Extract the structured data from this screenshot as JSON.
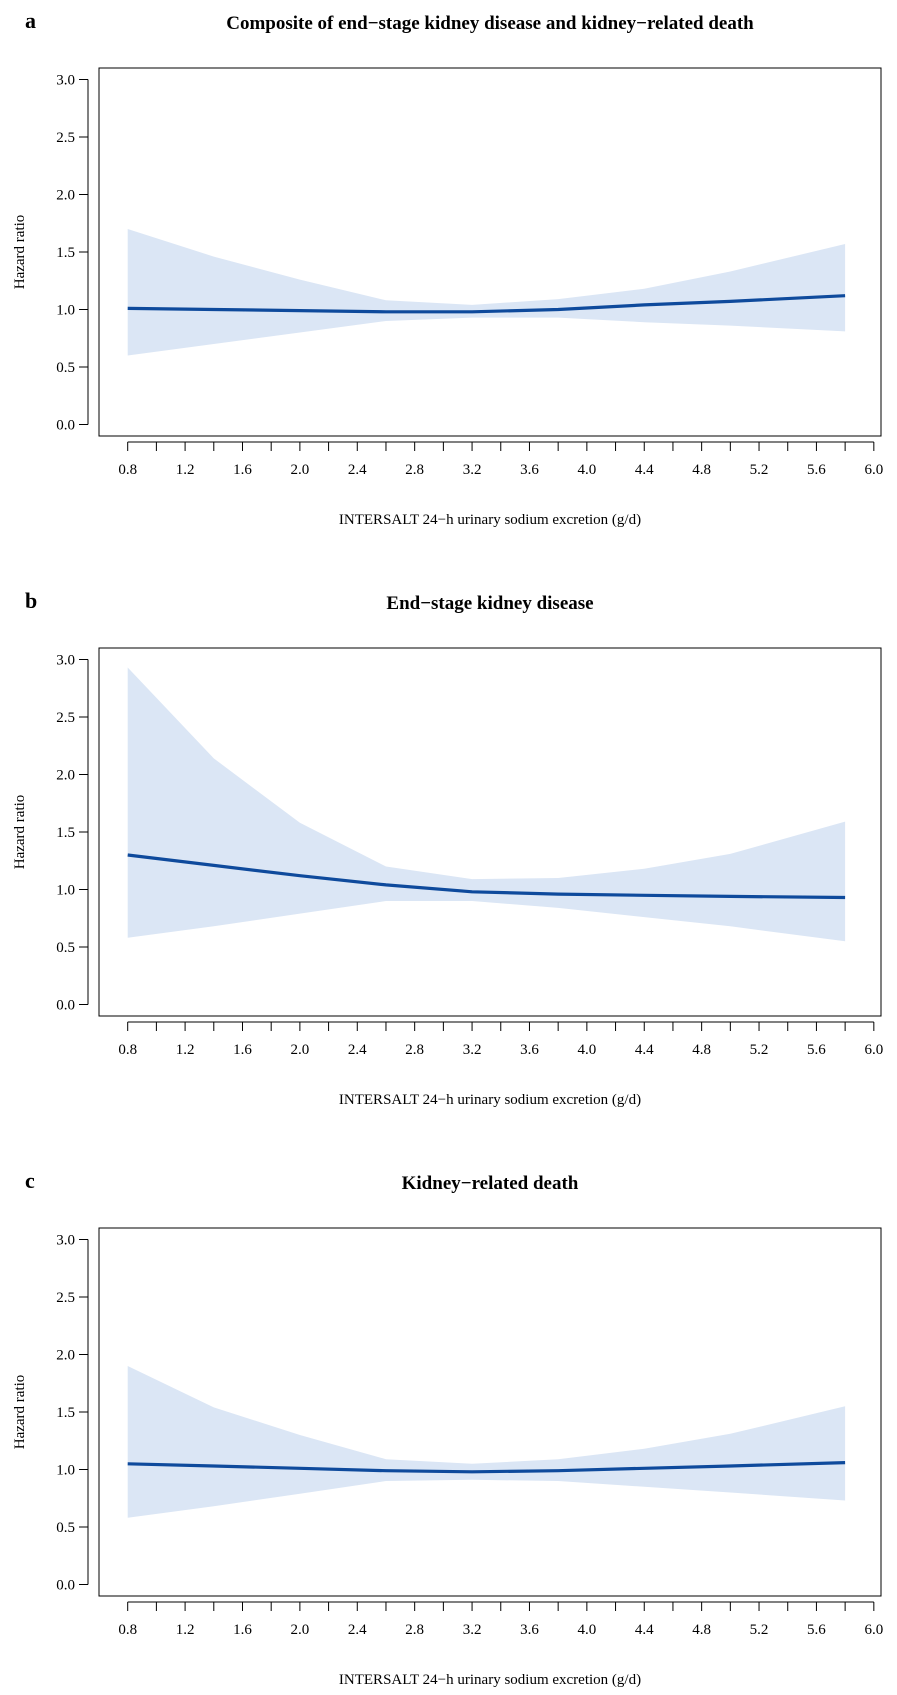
{
  "chart_data": [
    {
      "type": "line",
      "panel_label": "a",
      "title": "Composite of end−stage kidney disease and kidney−related death",
      "xlabel": "INTERSALT 24−h urinary sodium excretion (g/d)",
      "ylabel": "Hazard ratio",
      "xlim": [
        0.6,
        6.05
      ],
      "ylim": [
        -0.1,
        3.1
      ],
      "xticks": [
        "0.8",
        "1.2",
        "1.6",
        "2.0",
        "2.4",
        "2.8",
        "3.2",
        "3.6",
        "4.0",
        "4.4",
        "4.8",
        "5.2",
        "5.6",
        "6.0"
      ],
      "yticks": [
        "0.0",
        "0.5",
        "1.0",
        "1.5",
        "2.0",
        "2.5",
        "3.0"
      ],
      "grid": false,
      "series": [
        {
          "x": [
            0.8,
            1.4,
            2.0,
            2.6,
            3.2,
            3.8,
            4.4,
            5.0,
            5.8
          ],
          "y": [
            1.01,
            1.0,
            0.99,
            0.98,
            0.98,
            1.0,
            1.04,
            1.07,
            1.12
          ],
          "lower": [
            0.6,
            0.7,
            0.8,
            0.9,
            0.93,
            0.93,
            0.89,
            0.86,
            0.81
          ],
          "upper": [
            1.7,
            1.46,
            1.26,
            1.08,
            1.04,
            1.09,
            1.18,
            1.33,
            1.57
          ],
          "color": "#0e4a9c",
          "band_color": "#dbe6f5"
        }
      ]
    },
    {
      "type": "line",
      "panel_label": "b",
      "title": "End−stage kidney disease",
      "xlabel": "INTERSALT 24−h urinary sodium excretion (g/d)",
      "ylabel": "Hazard ratio",
      "xlim": [
        0.6,
        6.05
      ],
      "ylim": [
        -0.1,
        3.1
      ],
      "xticks": [
        "0.8",
        "1.2",
        "1.6",
        "2.0",
        "2.4",
        "2.8",
        "3.2",
        "3.6",
        "4.0",
        "4.4",
        "4.8",
        "5.2",
        "5.6",
        "6.0"
      ],
      "yticks": [
        "0.0",
        "0.5",
        "1.0",
        "1.5",
        "2.0",
        "2.5",
        "3.0"
      ],
      "grid": false,
      "series": [
        {
          "x": [
            0.8,
            1.4,
            2.0,
            2.6,
            3.2,
            3.8,
            4.4,
            5.0,
            5.8
          ],
          "y": [
            1.3,
            1.21,
            1.12,
            1.04,
            0.98,
            0.96,
            0.95,
            0.94,
            0.93
          ],
          "lower": [
            0.58,
            0.68,
            0.79,
            0.9,
            0.9,
            0.84,
            0.76,
            0.68,
            0.55
          ],
          "upper": [
            2.93,
            2.14,
            1.58,
            1.2,
            1.09,
            1.1,
            1.18,
            1.31,
            1.59
          ],
          "color": "#0e4a9c",
          "band_color": "#dbe6f5"
        }
      ]
    },
    {
      "type": "line",
      "panel_label": "c",
      "title": "Kidney−related death",
      "xlabel": "INTERSALT 24−h urinary sodium excretion (g/d)",
      "ylabel": "Hazard ratio",
      "xlim": [
        0.6,
        6.05
      ],
      "ylim": [
        -0.1,
        3.1
      ],
      "xticks": [
        "0.8",
        "1.2",
        "1.6",
        "2.0",
        "2.4",
        "2.8",
        "3.2",
        "3.6",
        "4.0",
        "4.4",
        "4.8",
        "5.2",
        "5.6",
        "6.0"
      ],
      "yticks": [
        "0.0",
        "0.5",
        "1.0",
        "1.5",
        "2.0",
        "2.5",
        "3.0"
      ],
      "grid": false,
      "series": [
        {
          "x": [
            0.8,
            1.4,
            2.0,
            2.6,
            3.2,
            3.8,
            4.4,
            5.0,
            5.8
          ],
          "y": [
            1.05,
            1.03,
            1.01,
            0.99,
            0.98,
            0.99,
            1.01,
            1.03,
            1.06
          ],
          "lower": [
            0.58,
            0.68,
            0.79,
            0.9,
            0.91,
            0.9,
            0.85,
            0.8,
            0.73
          ],
          "upper": [
            1.9,
            1.54,
            1.3,
            1.09,
            1.05,
            1.09,
            1.18,
            1.31,
            1.55
          ],
          "color": "#0e4a9c",
          "band_color": "#dbe6f5"
        }
      ]
    }
  ]
}
